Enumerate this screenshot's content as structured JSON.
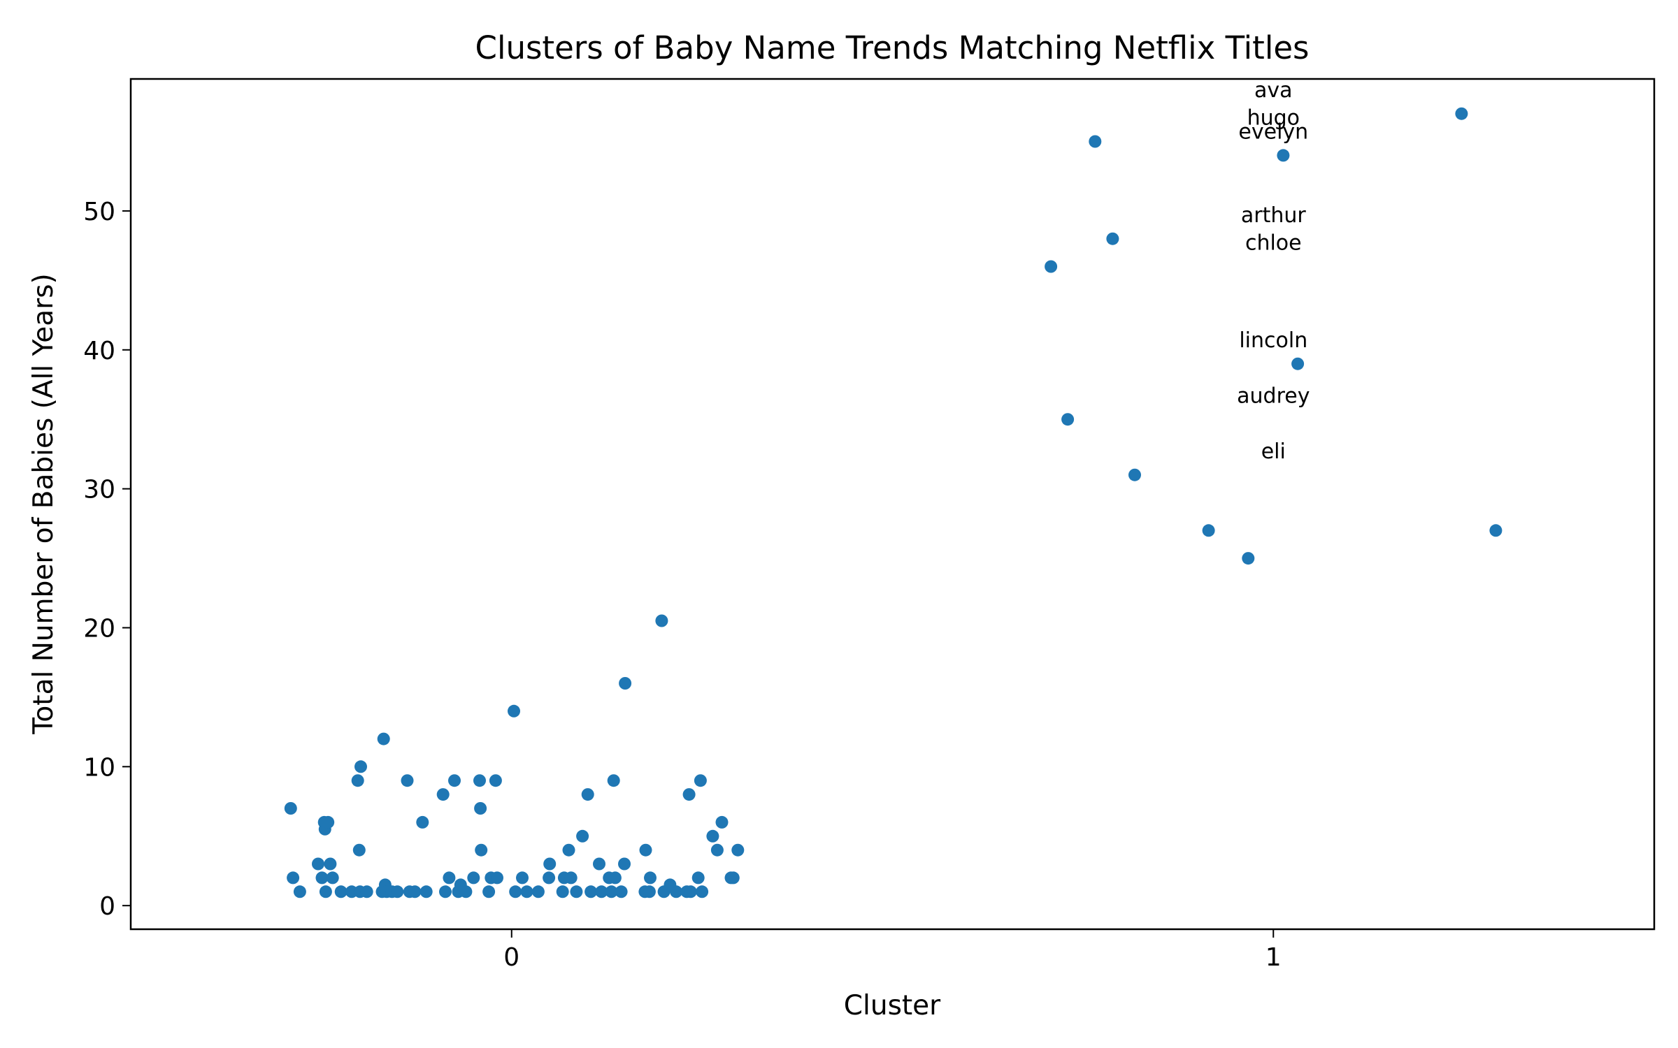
{
  "chart_data": {
    "type": "scatter",
    "title": "Clusters of Baby Name Trends Matching Netflix Titles",
    "xlabel": "Cluster",
    "ylabel": "Total Number of Babies (All Years)",
    "xlim": [
      -0.5,
      1.5
    ],
    "ylim": [
      -1.7,
      59.5
    ],
    "xticks": [
      0,
      1
    ],
    "yticks": [
      0,
      10,
      20,
      30,
      40,
      50
    ],
    "grid": false,
    "color": "#1f77b4",
    "series": [
      {
        "values": [
          [
            -0.29,
            7
          ],
          [
            -0.287,
            2
          ],
          [
            -0.278,
            1
          ],
          [
            -0.254,
            3
          ],
          [
            -0.249,
            2
          ],
          [
            -0.246,
            6
          ],
          [
            -0.245,
            5.5
          ],
          [
            -0.244,
            1
          ],
          [
            -0.241,
            6
          ],
          [
            -0.238,
            3
          ],
          [
            -0.235,
            2
          ],
          [
            -0.224,
            1
          ],
          [
            -0.21,
            1
          ],
          [
            -0.202,
            9
          ],
          [
            -0.2,
            4
          ],
          [
            -0.199,
            1
          ],
          [
            -0.198,
            10
          ],
          [
            -0.19,
            1
          ],
          [
            -0.17,
            1
          ],
          [
            -0.168,
            12
          ],
          [
            -0.166,
            1.5
          ],
          [
            -0.164,
            1
          ],
          [
            -0.157,
            1
          ],
          [
            -0.15,
            1
          ],
          [
            -0.137,
            9
          ],
          [
            -0.134,
            1
          ],
          [
            -0.127,
            1
          ],
          [
            -0.117,
            6
          ],
          [
            -0.112,
            1
          ],
          [
            -0.09,
            8
          ],
          [
            -0.087,
            1
          ],
          [
            -0.082,
            2
          ],
          [
            -0.075,
            9
          ],
          [
            -0.07,
            1
          ],
          [
            -0.067,
            1.5
          ],
          [
            -0.06,
            1
          ],
          [
            -0.05,
            2
          ],
          [
            -0.042,
            9
          ],
          [
            -0.041,
            7
          ],
          [
            -0.04,
            4
          ],
          [
            -0.03,
            1
          ],
          [
            -0.027,
            2
          ],
          [
            -0.021,
            9
          ],
          [
            -0.019,
            2
          ],
          [
            0.003,
            14
          ],
          [
            0.005,
            1
          ],
          [
            0.014,
            2
          ],
          [
            0.02,
            1
          ],
          [
            0.035,
            1
          ],
          [
            0.049,
            2
          ],
          [
            0.05,
            3
          ],
          [
            0.067,
            1
          ],
          [
            0.069,
            2
          ],
          [
            0.075,
            4
          ],
          [
            0.078,
            2
          ],
          [
            0.085,
            1
          ],
          [
            0.093,
            5
          ],
          [
            0.1,
            8
          ],
          [
            0.104,
            1
          ],
          [
            0.115,
            3
          ],
          [
            0.118,
            1
          ],
          [
            0.128,
            2
          ],
          [
            0.131,
            1
          ],
          [
            0.134,
            9
          ],
          [
            0.136,
            2
          ],
          [
            0.144,
            1
          ],
          [
            0.148,
            3
          ],
          [
            0.149,
            16
          ],
          [
            0.175,
            1
          ],
          [
            0.176,
            4
          ],
          [
            0.181,
            1
          ],
          [
            0.182,
            2
          ],
          [
            0.197,
            20.5
          ],
          [
            0.2,
            1
          ],
          [
            0.208,
            1.5
          ],
          [
            0.216,
            1
          ],
          [
            0.23,
            1
          ],
          [
            0.235,
            1
          ],
          [
            0.233,
            8
          ],
          [
            0.245,
            2
          ],
          [
            0.248,
            9
          ],
          [
            0.25,
            1
          ],
          [
            0.264,
            5
          ],
          [
            0.27,
            4
          ],
          [
            0.276,
            6
          ],
          [
            0.288,
            2
          ],
          [
            0.291,
            2
          ],
          [
            0.297,
            4
          ],
          [
            0.708,
            46
          ],
          [
            0.73,
            35
          ],
          [
            0.766,
            55
          ],
          [
            0.789,
            48
          ],
          [
            0.818,
            31
          ],
          [
            0.915,
            27
          ],
          [
            0.967,
            25
          ],
          [
            1.013,
            54
          ],
          [
            1.032,
            39
          ],
          [
            1.247,
            57
          ],
          [
            1.292,
            27
          ]
        ]
      }
    ],
    "annotations": [
      {
        "text": "ava",
        "x": 1.0,
        "y": 58.2
      },
      {
        "text": "hugo",
        "x": 1.0,
        "y": 56.2
      },
      {
        "text": "evelyn",
        "x": 1.0,
        "y": 55.2
      },
      {
        "text": "arthur",
        "x": 1.0,
        "y": 49.2
      },
      {
        "text": "chloe",
        "x": 1.0,
        "y": 47.2
      },
      {
        "text": "lincoln",
        "x": 1.0,
        "y": 40.2
      },
      {
        "text": "audrey",
        "x": 1.0,
        "y": 36.2
      },
      {
        "text": "eli",
        "x": 1.0,
        "y": 32.2
      }
    ]
  }
}
